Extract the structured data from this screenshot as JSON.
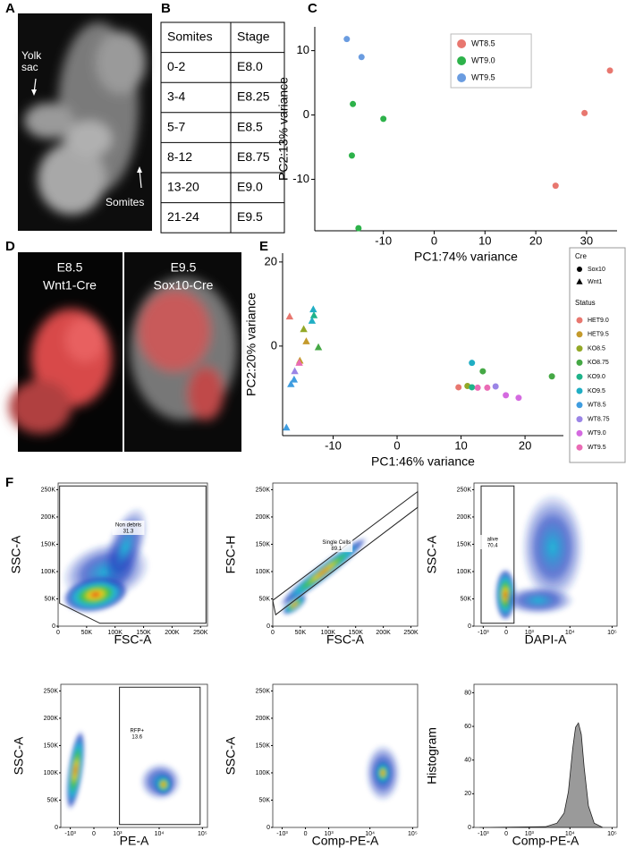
{
  "panel_labels": [
    "A",
    "B",
    "C",
    "D",
    "E",
    "F"
  ],
  "panel_a": {
    "labels": [
      "Yolk sac",
      "Somites"
    ]
  },
  "table": {
    "header": [
      "Somites",
      "Stage"
    ],
    "rows": [
      [
        "0-2",
        "E8.0"
      ],
      [
        "3-4",
        "E8.25"
      ],
      [
        "5-7",
        "E8.5"
      ],
      [
        "8-12",
        "E8.75"
      ],
      [
        "13-20",
        "E9.0"
      ],
      [
        "21-24",
        "E9.5"
      ]
    ]
  },
  "panel_d": {
    "images": [
      {
        "title": "E8.5",
        "subtitle": "Wnt1-Cre"
      },
      {
        "title": "E9.5",
        "subtitle": "Sox10-Cre"
      }
    ]
  },
  "chart_data": [
    {
      "type": "scatter",
      "x_label": "PC1:74% variance",
      "y_label": "PC2:13% variance",
      "xlim": [
        -23.5,
        36
      ],
      "xticks": [
        -10,
        0,
        10,
        20,
        30
      ],
      "ylim": [
        -18,
        13.7
      ],
      "yticks": [
        -10,
        0,
        10
      ],
      "legend": "top",
      "series": [
        {
          "name": "WT8.5",
          "color": "#e8776f",
          "x": [
            23.9,
            29.6,
            34.6
          ],
          "values": [
            -11.0,
            0.3,
            6.9
          ]
        },
        {
          "name": "WT9.0",
          "color": "#2db24a",
          "x": [
            -16.0,
            -10.0,
            -16.2,
            -14.9
          ],
          "values": [
            1.7,
            -0.6,
            -6.3,
            -17.6
          ]
        },
        {
          "name": "WT9.5",
          "color": "#6a9ce0",
          "x": [
            -17.2,
            -14.3
          ],
          "values": [
            11.8,
            9.0
          ]
        }
      ]
    },
    {
      "type": "scatter",
      "x_label": "PC1:46% variance",
      "y_label": "PC2:20% variance",
      "xlim": [
        -17.9,
        26
      ],
      "xticks": [
        -10,
        0,
        10,
        20
      ],
      "ylim": [
        -21.3,
        22.1
      ],
      "yticks": [
        0,
        20
      ],
      "legend": "right",
      "shape_legend": {
        "title": "Cre",
        "items": [
          {
            "name": "Sox10",
            "marker": "circle"
          },
          {
            "name": "Wnt1",
            "marker": "triangle"
          }
        ]
      },
      "legend_title": "Status",
      "series": [
        {
          "name": "HET9.0",
          "color": "#e8776f",
          "x": [
            -16.8,
            9.6
          ],
          "values": [
            7.0,
            -9.8
          ],
          "markers": [
            "triangle",
            "circle"
          ]
        },
        {
          "name": "HET9.5",
          "color": "#c49a2c",
          "x": [
            -14.2,
            -15.2
          ],
          "values": [
            1.1,
            -3.5
          ],
          "markers": [
            "triangle",
            "triangle"
          ]
        },
        {
          "name": "KO8.5",
          "color": "#93a827",
          "x": [
            -14.6,
            11.0
          ],
          "values": [
            4.0,
            -9.5
          ],
          "markers": [
            "triangle",
            "circle"
          ]
        },
        {
          "name": "KO8.75",
          "color": "#45a845",
          "x": [
            -12.3,
            24.2,
            13.4
          ],
          "values": [
            -0.3,
            -7.2,
            -6.0
          ],
          "markers": [
            "triangle",
            "circle",
            "circle"
          ]
        },
        {
          "name": "KO9.0",
          "color": "#1fb38a",
          "x": [
            -13.0,
            11.7
          ],
          "values": [
            7.3,
            -9.8
          ],
          "markers": [
            "triangle",
            "circle"
          ]
        },
        {
          "name": "KO9.5",
          "color": "#20aec4",
          "x": [
            -13.3,
            -13.1,
            11.7
          ],
          "values": [
            6.0,
            8.7,
            -4.0
          ],
          "markers": [
            "triangle",
            "triangle",
            "circle"
          ]
        },
        {
          "name": "WT8.5",
          "color": "#3f9de0",
          "x": [
            -16.6,
            -17.3,
            -16.1
          ],
          "values": [
            -9.1,
            -19.4,
            -8.0
          ],
          "markers": [
            "triangle",
            "triangle",
            "triangle"
          ]
        },
        {
          "name": "WT8.75",
          "color": "#9b85e6",
          "x": [
            -16.0,
            15.4
          ],
          "values": [
            -6.0,
            -9.6
          ],
          "markers": [
            "triangle",
            "circle"
          ]
        },
        {
          "name": "WT9.0",
          "color": "#d46ae0",
          "x": [
            17.0,
            19.0
          ],
          "values": [
            -11.7,
            -12.3
          ],
          "markers": [
            "circle",
            "circle"
          ]
        },
        {
          "name": "WT9.5",
          "color": "#ea6bb5",
          "x": [
            -15.3,
            12.6,
            14.1
          ],
          "values": [
            -4.0,
            -9.9,
            -9.9
          ],
          "markers": [
            "triangle",
            "circle",
            "circle"
          ]
        }
      ]
    },
    {
      "type": "density",
      "x_label": "FSC-A",
      "y_label": "SSC-A",
      "xlim": [
        0,
        262144
      ],
      "xticks": [
        0,
        {
          "value": 50000,
          "label": "50K"
        },
        {
          "value": 100000,
          "label": "100K"
        },
        {
          "value": 150000,
          "label": "150K"
        },
        {
          "value": 200000,
          "label": "200K"
        },
        {
          "value": 250000,
          "label": "250K"
        }
      ],
      "ylim": [
        0,
        262144
      ],
      "yticks": [
        0,
        {
          "value": 50000,
          "label": "50K"
        },
        {
          "value": 100000,
          "label": "100K"
        },
        {
          "value": 150000,
          "label": "150K"
        },
        {
          "value": 200000,
          "label": "200K"
        },
        {
          "value": 250000,
          "label": "250K"
        }
      ],
      "gates": [
        {
          "name": "Non debris",
          "value": 31.3
        }
      ]
    },
    {
      "type": "density",
      "x_label": "FSC-A",
      "y_label": "FSC-H",
      "xlim": [
        0,
        262144
      ],
      "xticks": [
        0,
        {
          "value": 50000,
          "label": "50K"
        },
        {
          "value": 100000,
          "label": "100K"
        },
        {
          "value": 150000,
          "label": "150K"
        },
        {
          "value": 200000,
          "label": "200K"
        },
        {
          "value": 250000,
          "label": "250K"
        }
      ],
      "ylim": [
        0,
        262144
      ],
      "yticks": [
        0,
        {
          "value": 50000,
          "label": "50K"
        },
        {
          "value": 100000,
          "label": "100K"
        },
        {
          "value": 150000,
          "label": "150K"
        },
        {
          "value": 200000,
          "label": "200K"
        },
        {
          "value": 250000,
          "label": "250K"
        }
      ],
      "gates": [
        {
          "name": "Single Cells",
          "value": 89.1
        }
      ]
    },
    {
      "type": "density",
      "x_label": "DAPI-A",
      "y_label": "SSC-A",
      "xscale": "biexponential",
      "xlim": [
        -1750,
        131000
      ],
      "xticks": [
        {
          "value": -1000,
          "label": "-10³"
        },
        0,
        {
          "value": 1000,
          "label": "10³"
        },
        {
          "value": 10000,
          "label": "10⁴"
        },
        {
          "value": 100000,
          "label": "10⁵"
        }
      ],
      "ylim": [
        0,
        262144
      ],
      "yticks": [
        0,
        {
          "value": 50000,
          "label": "50K"
        },
        {
          "value": 100000,
          "label": "100K"
        },
        {
          "value": 150000,
          "label": "150K"
        },
        {
          "value": 200000,
          "label": "200K"
        },
        {
          "value": 250000,
          "label": "250K"
        }
      ],
      "gates": [
        {
          "name": "alive",
          "value": 70.4
        }
      ]
    },
    {
      "type": "density",
      "x_label": "PE-A",
      "y_label": "SSC-A",
      "xscale": "biexponential",
      "xlim": [
        -1750,
        131000
      ],
      "xticks": [
        {
          "value": -1000,
          "label": "-10³"
        },
        0,
        {
          "value": 1000,
          "label": "10³"
        },
        {
          "value": 10000,
          "label": "10⁴"
        },
        {
          "value": 100000,
          "label": "10⁵"
        }
      ],
      "ylim": [
        0,
        262144
      ],
      "yticks": [
        0,
        {
          "value": 50000,
          "label": "50K"
        },
        {
          "value": 100000,
          "label": "100K"
        },
        {
          "value": 150000,
          "label": "150K"
        },
        {
          "value": 200000,
          "label": "200K"
        },
        {
          "value": 250000,
          "label": "250K"
        }
      ],
      "gates": [
        {
          "name": "RFP+",
          "value": 13.6
        }
      ]
    },
    {
      "type": "density",
      "x_label": "Comp-PE-A",
      "y_label": "SSC-A",
      "xscale": "biexponential",
      "xlim": [
        -1750,
        131000
      ],
      "xticks": [
        {
          "value": -1000,
          "label": "-10³"
        },
        0,
        {
          "value": 1000,
          "label": "10³"
        },
        {
          "value": 10000,
          "label": "10⁴"
        },
        {
          "value": 100000,
          "label": "10⁵"
        }
      ],
      "ylim": [
        0,
        262144
      ],
      "yticks": [
        0,
        {
          "value": 50000,
          "label": "50K"
        },
        {
          "value": 100000,
          "label": "100K"
        },
        {
          "value": 150000,
          "label": "150K"
        },
        {
          "value": 200000,
          "label": "200K"
        },
        {
          "value": 250000,
          "label": "250K"
        }
      ]
    },
    {
      "type": "histogram",
      "x_label": "Comp-PE-A",
      "y_label": "Histogram",
      "xscale": "biexponential",
      "xlim": [
        -1750,
        131000
      ],
      "xticks": [
        {
          "value": -1000,
          "label": "-10³"
        },
        0,
        {
          "value": 1000,
          "label": "10³"
        },
        {
          "value": 10000,
          "label": "10⁴"
        },
        {
          "value": 100000,
          "label": "10⁵"
        }
      ],
      "ylim": [
        0,
        85
      ],
      "yticks": [
        0,
        20,
        40,
        60,
        80
      ]
    }
  ]
}
